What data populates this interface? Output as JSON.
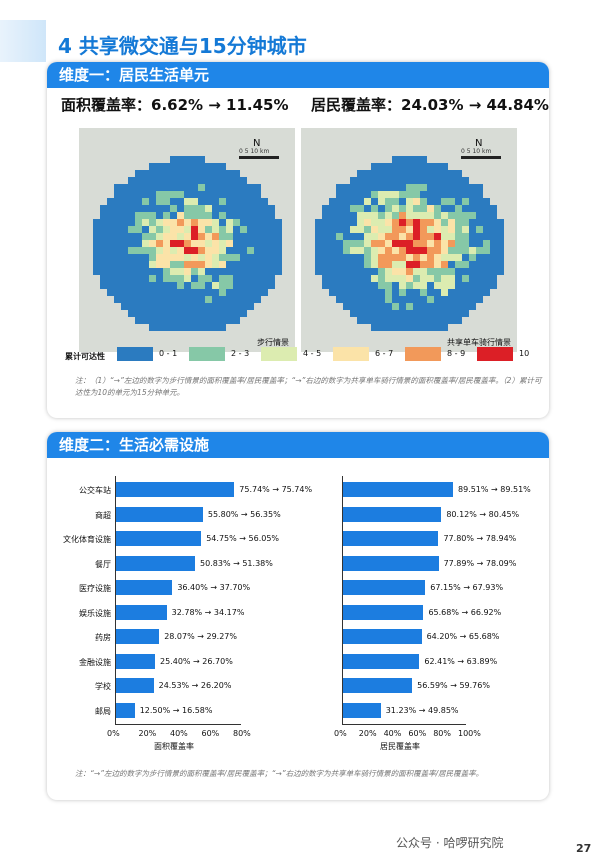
{
  "title": "4 共享微交通与15分钟城市",
  "section1": {
    "header": "维度一：居民生活单元",
    "area_rate": "面积覆盖率：6.62% → 11.45%",
    "resident_rate": "居民覆盖率：24.03% → 44.84%",
    "map_left_caption": "步行情景",
    "map_right_caption": "共享单车骑行情景",
    "scale_label": "0 5 10 km",
    "north": "N",
    "legend_title": "累计可达性",
    "legend": [
      {
        "label": "0 - 1",
        "color": "#2b7bc0"
      },
      {
        "label": "2 - 3",
        "color": "#86c8a7"
      },
      {
        "label": "4 - 5",
        "color": "#dcecb0"
      },
      {
        "label": "6 - 7",
        "color": "#fbe3a8"
      },
      {
        "label": "8 - 9",
        "color": "#f2995a"
      },
      {
        "label": "10",
        "color": "#dc1f26"
      }
    ],
    "note": "注：（1）“→”左边的数字为步行情景的面积覆盖率/居民覆盖率；“→”右边的数字为共享单车骑行情景的面积覆盖率/居民覆盖率。（2）累计可达性为10的单元为15分钟单元。"
  },
  "section2": {
    "header": "维度二：生活必需设施",
    "left_axis_title": "面积覆盖率",
    "right_axis_title": "居民覆盖率",
    "note": "注：“→”左边的数字为步行情景的面积覆盖率/居民覆盖率；“→”右边的数字为共享单车骑行情景的面积覆盖率/居民覆盖率。"
  },
  "chart_data": [
    {
      "type": "bar",
      "orientation": "horizontal",
      "categories": [
        "公交车站",
        "商超",
        "文化体育设施",
        "餐厅",
        "医疗设施",
        "娱乐设施",
        "药房",
        "金融设施",
        "学校",
        "邮局"
      ],
      "values": [
        75.74,
        55.8,
        54.75,
        50.83,
        36.4,
        32.78,
        28.07,
        25.4,
        24.53,
        12.5
      ],
      "labels": [
        "75.74% → 75.74%",
        "55.80% → 56.35%",
        "54.75% → 56.05%",
        "50.83% → 51.38%",
        "36.40% → 37.70%",
        "32.78% → 34.17%",
        "28.07% → 29.27%",
        "25.40% → 26.70%",
        "24.53% → 26.20%",
        "12.50% → 16.58%"
      ],
      "xlabel": "面积覆盖率",
      "ticks": [
        "0%",
        "20%",
        "40%",
        "60%",
        "80%"
      ],
      "xlim": [
        0,
        80
      ]
    },
    {
      "type": "bar",
      "orientation": "horizontal",
      "categories": [
        "公交车站",
        "商超",
        "文化体育设施",
        "餐厅",
        "医疗设施",
        "娱乐设施",
        "药房",
        "金融设施",
        "学校",
        "邮局"
      ],
      "values": [
        89.51,
        80.12,
        77.8,
        77.89,
        67.15,
        65.68,
        64.2,
        62.41,
        56.59,
        31.23
      ],
      "labels": [
        "89.51% → 89.51%",
        "80.12% → 80.45%",
        "77.80% → 78.94%",
        "77.89% → 78.09%",
        "67.15% → 67.93%",
        "65.68% → 66.92%",
        "64.20% → 65.68%",
        "62.41% → 63.89%",
        "56.59% → 59.76%",
        "31.23% → 49.85%"
      ],
      "xlabel": "居民覆盖率",
      "ticks": [
        "0%",
        "20%",
        "40%",
        "60%",
        "80%",
        "100%"
      ],
      "xlim": [
        0,
        100
      ]
    }
  ],
  "watermark": "公众号 · 哈啰研究院",
  "page_number": "27"
}
